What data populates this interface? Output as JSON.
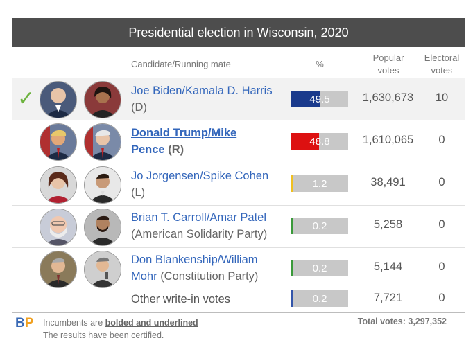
{
  "title": "Presidential election in Wisconsin, 2020",
  "columns": {
    "candidate": "Candidate/Running mate",
    "percent": "%",
    "popular": [
      "Popular",
      "votes"
    ],
    "electoral": [
      "Electoral",
      "votes"
    ]
  },
  "rows": [
    {
      "line1": "Joe Biden/Kamala D. Harris",
      "line1_party": "",
      "line2": "",
      "party": "(D)",
      "pct": 49.5,
      "pct_label": "49.5",
      "votes": "1,630,673",
      "electoral": "10",
      "color": "#1a3a8c",
      "winner": true,
      "incumbent": false
    },
    {
      "line1": "Donald Trump/Mike",
      "line1_party": "",
      "line2": "Pence",
      "party": "(R)",
      "pct": 48.8,
      "pct_label": "48.8",
      "votes": "1,610,065",
      "electoral": "0",
      "color": "#dd1111",
      "winner": false,
      "incumbent": true
    },
    {
      "line1": "Jo Jorgensen/Spike Cohen",
      "line1_party": "",
      "line2": "",
      "party": "(L)",
      "pct": 1.2,
      "pct_label": "1.2",
      "votes": "38,491",
      "electoral": "0",
      "color": "#f0c020",
      "winner": false,
      "incumbent": false
    },
    {
      "line1": "Brian T. Carroll/Amar Patel",
      "line1_party": "",
      "line2": "",
      "party": "(American Solidarity Party)",
      "pct": 0.2,
      "pct_label": "0.2",
      "votes": "5,258",
      "electoral": "0",
      "color": "#3a9a3a",
      "winner": false,
      "incumbent": false
    },
    {
      "line1": "Don Blankenship/William",
      "line1_party": "",
      "line2": "Mohr",
      "party": "(Constitution Party)",
      "pct": 0.2,
      "pct_label": "0.2",
      "votes": "5,144",
      "electoral": "0",
      "color": "#3a9a3a",
      "winner": false,
      "incumbent": false
    },
    {
      "line1": "Other write-in votes",
      "line1_party": "",
      "line2": "",
      "party": "",
      "pct": 0.2,
      "pct_label": "0.2",
      "votes": "7,721",
      "electoral": "0",
      "color": "#3355aa",
      "winner": false,
      "incumbent": false
    }
  ],
  "footer": {
    "logo_b": "B",
    "logo_p": "P",
    "note_prefix": "Incumbents are ",
    "note_bold": "bolded and underlined",
    "note_suffix": " The results have been certified.",
    "total": "Total votes: 3,297,352"
  },
  "icons": {
    "winner": "check-icon"
  }
}
